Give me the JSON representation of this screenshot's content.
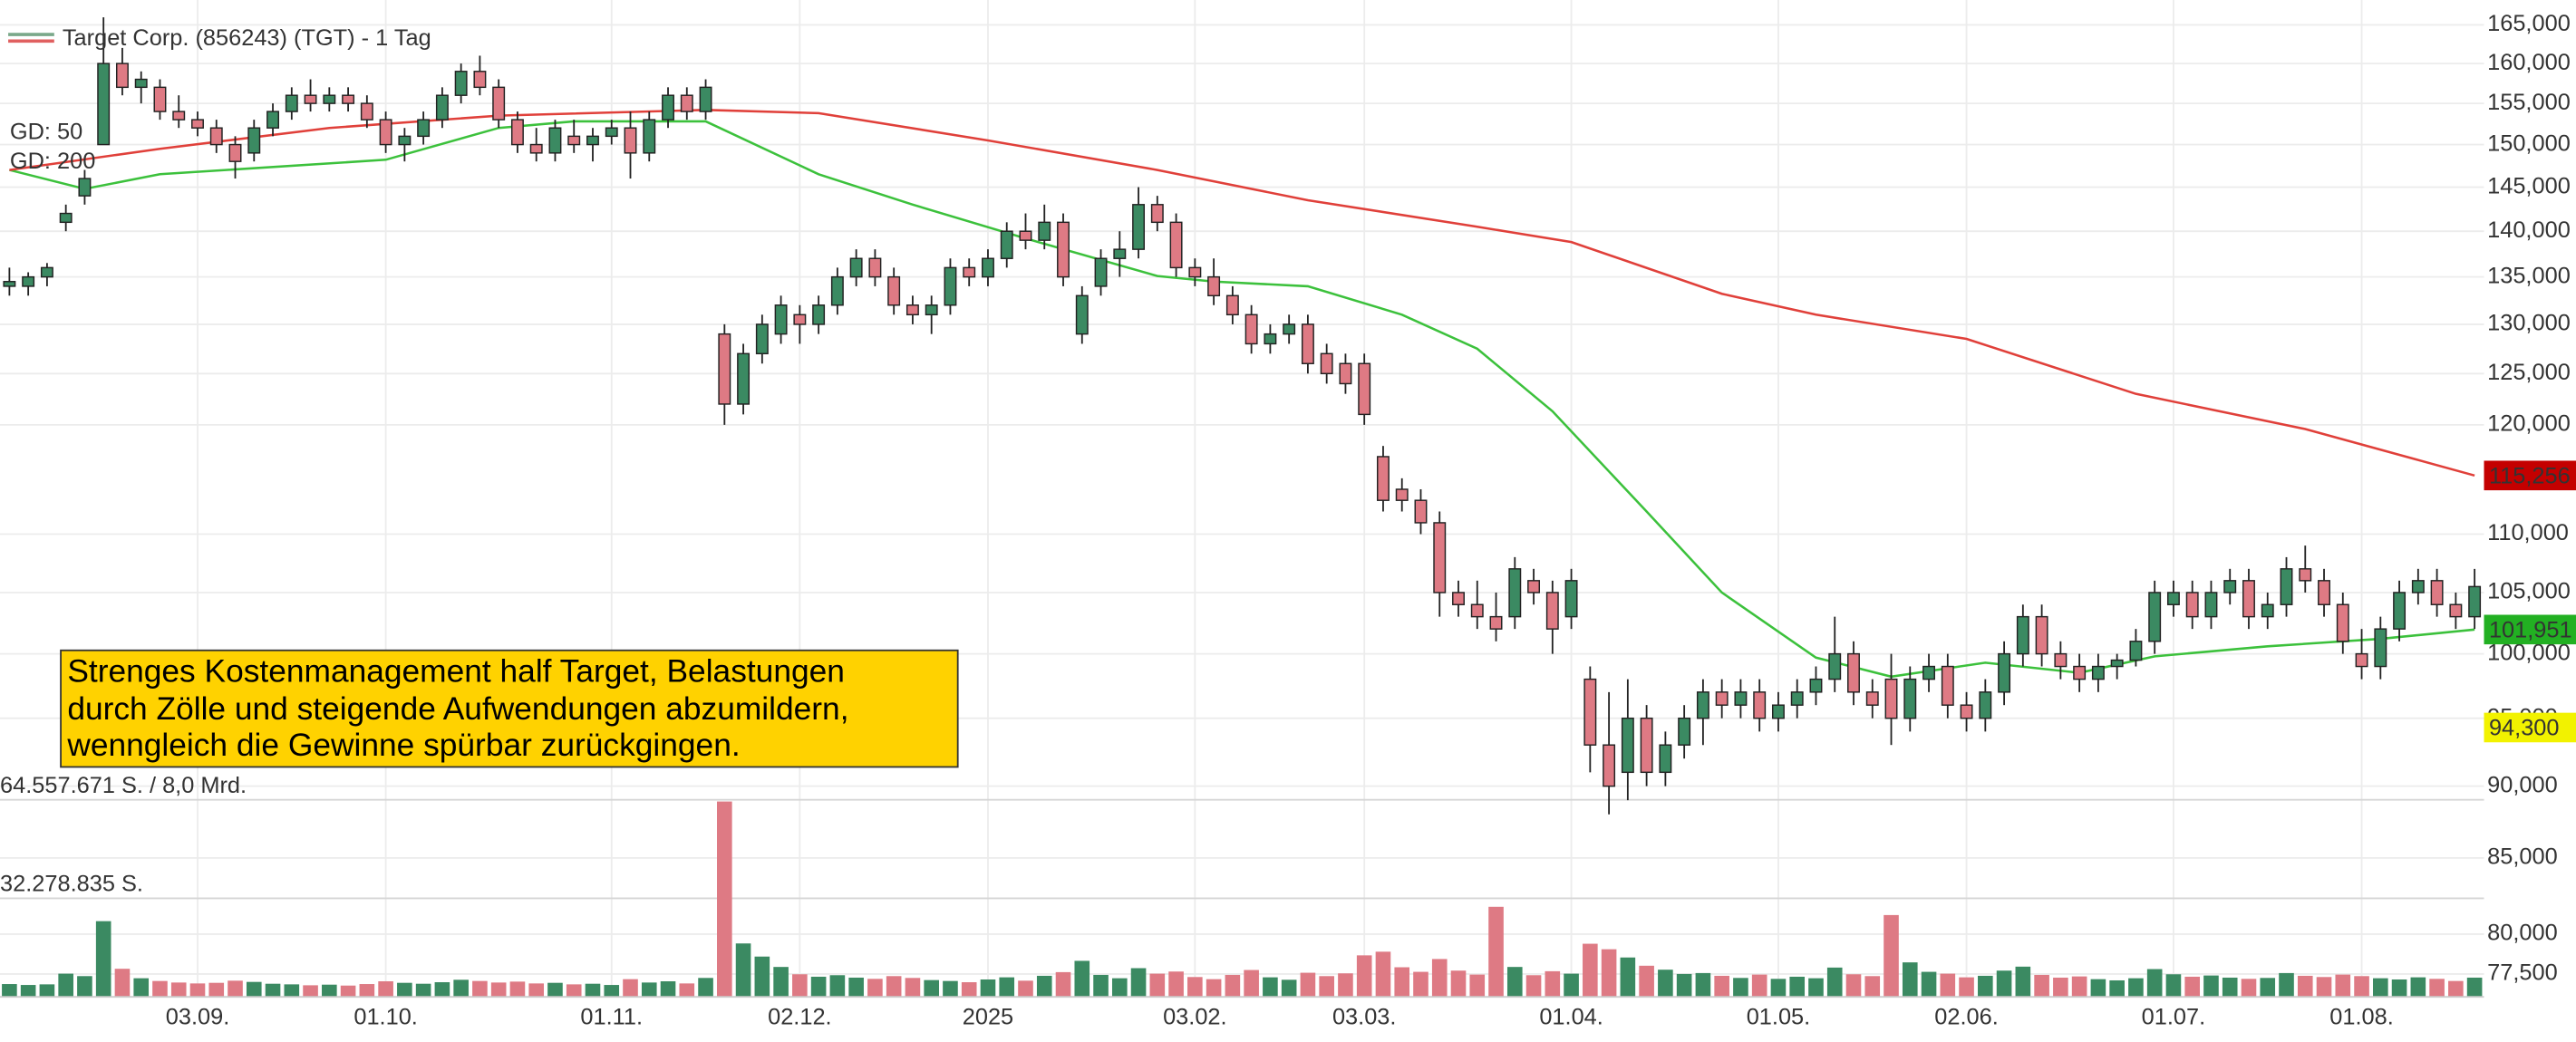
{
  "chart_data": {
    "type": "candlestick",
    "title": "Target Corp. (856243) (TGT) - 1 Tag",
    "xlim": [
      -0.5,
      131.5
    ],
    "xticks": [
      {
        "value": 10,
        "label": "03.09."
      },
      {
        "value": 20,
        "label": "01.10."
      },
      {
        "value": 32,
        "label": "01.11."
      },
      {
        "value": 42,
        "label": "02.12."
      },
      {
        "value": 52,
        "label": "2025"
      },
      {
        "value": 63,
        "label": "03.02."
      },
      {
        "value": 72,
        "label": "03.03."
      },
      {
        "value": 83,
        "label": "01.04."
      },
      {
        "value": 94,
        "label": "01.05."
      },
      {
        "value": 104,
        "label": "02.06."
      },
      {
        "value": 115,
        "label": "01.07."
      },
      {
        "value": 125,
        "label": "01.08."
      }
    ],
    "ylim": [
      76.1,
      168.3
    ],
    "log_scale": true,
    "yticks": [
      {
        "value": 77.5,
        "label": "77,500"
      },
      {
        "value": 80,
        "label": "80,000"
      },
      {
        "value": 85,
        "label": "85,000"
      },
      {
        "value": 90,
        "label": "90,000"
      },
      {
        "value": 95,
        "label": "95,000"
      },
      {
        "value": 100,
        "label": "100,000"
      },
      {
        "value": 105,
        "label": "105,000"
      },
      {
        "value": 110,
        "label": "110,000"
      },
      {
        "value": 120,
        "label": "120,000"
      },
      {
        "value": 125,
        "label": "125,000"
      },
      {
        "value": 130,
        "label": "130,000"
      },
      {
        "value": 135,
        "label": "135,000"
      },
      {
        "value": 140,
        "label": "140,000"
      },
      {
        "value": 145,
        "label": "145,000"
      },
      {
        "value": 150,
        "label": "150,000"
      },
      {
        "value": 155,
        "label": "155,000"
      },
      {
        "value": 160,
        "label": "160,000"
      },
      {
        "value": 165,
        "label": "165,000"
      }
    ],
    "grid": true,
    "up_color": "#3b8a62",
    "down_color": "#de7a84",
    "open": [
      134,
      134,
      135,
      141,
      144,
      150,
      160,
      157,
      157,
      154,
      153,
      152,
      150,
      149,
      152,
      154,
      156,
      155,
      156,
      155,
      153,
      150,
      151,
      153,
      156,
      159,
      157,
      153,
      150,
      149,
      151,
      150,
      151,
      152,
      149,
      153,
      156,
      154,
      129,
      122,
      127,
      129,
      131,
      130,
      132,
      135,
      137,
      135,
      132,
      131,
      132,
      136,
      135,
      137,
      140,
      139,
      141,
      129,
      134,
      137,
      138,
      143,
      141,
      136,
      135,
      133,
      131,
      128,
      129,
      130,
      127,
      126,
      126,
      117,
      114,
      113,
      111,
      105,
      104,
      103,
      103,
      106,
      105,
      103,
      98,
      93,
      91,
      95,
      91,
      93,
      95,
      97,
      96,
      97,
      95,
      96,
      97,
      98,
      100,
      97,
      98,
      95,
      98,
      99,
      96,
      95,
      97,
      100,
      103,
      100,
      99,
      98,
      99,
      99.5,
      101,
      104,
      105,
      103,
      105,
      106,
      103,
      104,
      107,
      106,
      104,
      100,
      99,
      102,
      105,
      106,
      104,
      103
    ],
    "high": [
      136,
      135.5,
      136.5,
      143,
      147,
      166,
      162,
      159,
      158,
      156,
      154,
      153,
      151,
      153,
      155,
      157,
      158,
      157,
      157,
      156,
      154,
      152,
      154,
      157,
      160,
      161,
      158,
      154,
      152,
      153,
      153,
      152,
      153,
      154,
      154,
      157,
      157,
      158,
      130,
      128,
      131,
      133,
      132,
      133,
      136,
      138,
      138,
      136,
      133,
      133,
      137,
      137,
      138,
      141,
      142,
      143,
      142,
      134,
      138,
      140,
      145,
      144,
      142,
      137,
      137,
      134,
      132,
      130,
      131,
      131,
      128,
      127,
      127,
      118,
      115,
      114,
      112,
      106,
      106,
      105,
      108,
      107,
      106,
      107,
      99,
      97,
      98,
      96,
      94,
      96,
      98,
      98,
      98,
      98,
      97,
      98,
      99,
      103,
      101,
      98,
      100,
      99,
      100,
      100,
      97,
      98,
      101,
      104,
      104,
      101,
      100,
      100,
      100,
      102,
      106,
      106,
      106,
      106,
      107,
      107,
      105,
      108,
      109,
      107,
      105,
      102,
      103,
      106,
      107,
      107,
      105,
      107
    ],
    "low": [
      133,
      133,
      134,
      140,
      143,
      150,
      156,
      155,
      153,
      152,
      151,
      149,
      146,
      148,
      151,
      153,
      154,
      154,
      154,
      152,
      149,
      148,
      150,
      152,
      155,
      156,
      152,
      149,
      148,
      148,
      149,
      148,
      150,
      146,
      148,
      152,
      153,
      153,
      120,
      121,
      126,
      128,
      128,
      129,
      131,
      134,
      134,
      131,
      130,
      129,
      131,
      134,
      134,
      136,
      138,
      138,
      134,
      128,
      133,
      135,
      137,
      140,
      135,
      134,
      132,
      130,
      127,
      127,
      128,
      125,
      124,
      123,
      120,
      112,
      112,
      110,
      103,
      103,
      102,
      101,
      102,
      104,
      100,
      102,
      91,
      88,
      89,
      90,
      90,
      92,
      93,
      95,
      95,
      94,
      94,
      95,
      96,
      97,
      96,
      95,
      93,
      94,
      97,
      95,
      94,
      94,
      96,
      99,
      99,
      98,
      97,
      97,
      98,
      99,
      100,
      103,
      102,
      102,
      104,
      102,
      102,
      103,
      105,
      103,
      100,
      98,
      98,
      101,
      104,
      103,
      102,
      102
    ],
    "close": [
      134.5,
      135,
      136,
      142,
      146,
      160,
      157,
      158,
      154,
      153,
      152,
      150,
      148,
      152,
      154,
      156,
      155,
      156,
      155,
      153,
      150,
      151,
      153,
      156,
      159,
      157,
      153,
      150,
      149,
      152,
      150,
      151,
      152,
      149,
      153,
      156,
      154,
      157,
      122,
      127,
      130,
      132,
      130,
      132,
      135,
      137,
      135,
      132,
      131,
      132,
      136,
      135,
      137,
      140,
      139,
      141,
      135,
      133,
      137,
      138,
      143,
      141,
      136,
      135,
      133,
      131,
      128,
      129,
      130,
      126,
      125,
      124,
      121,
      113,
      113,
      111,
      105,
      104,
      103,
      102,
      107,
      105,
      102,
      106,
      93,
      90,
      95,
      91,
      93,
      95,
      97,
      96,
      97,
      95,
      96,
      97,
      98,
      100,
      97,
      96,
      95,
      98,
      99,
      96,
      95,
      97,
      100,
      103,
      100,
      99,
      98,
      99,
      99.5,
      101,
      105,
      105,
      103,
      105,
      106,
      103,
      104,
      107,
      106,
      104,
      101,
      99,
      102,
      105,
      106,
      104,
      103,
      105.5
    ],
    "volume": [
      4200000,
      3900000,
      4100000,
      7600000,
      6800000,
      24800000,
      9200000,
      6100000,
      5200000,
      4700000,
      4400000,
      4600000,
      5300000,
      4900000,
      4300000,
      4100000,
      3800000,
      4000000,
      3700000,
      4200000,
      5100000,
      4600000,
      4300000,
      4800000,
      5600000,
      5200000,
      4700000,
      5000000,
      4400000,
      4600000,
      4100000,
      4300000,
      3900000,
      5800000,
      4700000,
      5100000,
      4400000,
      6200000,
      64000000,
      17500000,
      13200000,
      9800000,
      7400000,
      6600000,
      7100000,
      6300000,
      5900000,
      6800000,
      6200000,
      5500000,
      5200000,
      4800000,
      5700000,
      6400000,
      5300000,
      6900000,
      8100000,
      11800000,
      7200000,
      6100000,
      9400000,
      7600000,
      8300000,
      6500000,
      5800000,
      7200000,
      8800000,
      6400000,
      5600000,
      7900000,
      6800000,
      7700000,
      13600000,
      14800000,
      9700000,
      8200000,
      12400000,
      8600000,
      7300000,
      29500000,
      9800000,
      7100000,
      8400000,
      7600000,
      17400000,
      15600000,
      12900000,
      10200000,
      8900000,
      7500000,
      7800000,
      6900000,
      6200000,
      7300000,
      5900000,
      6600000,
      6100000,
      9600000,
      7400000,
      6800000,
      26800000,
      11300000,
      8200000,
      7600000,
      6400000,
      6900000,
      8600000,
      9900000,
      7200000,
      6300000,
      6700000,
      5800000,
      5400000,
      6100000,
      9100000,
      7400000,
      6600000,
      7000000,
      6300000,
      5900000,
      6200000,
      7800000,
      6900000,
      6500000,
      7300000,
      6800000,
      6100000,
      5700000,
      6400000,
      5900000,
      5200000,
      6300000
    ],
    "volume_lim": [
      0,
      64557671
    ],
    "volume_ticks": [
      {
        "value": 64557671,
        "label": "64.557.671 S. / 8,0 Mrd."
      },
      {
        "value": 32278835,
        "label": "32.278.835 S."
      }
    ],
    "moving_averages": [
      {
        "name": "GD: 50",
        "color": "#3cc13c",
        "x": [
          0,
          4,
          8,
          20,
          26,
          30,
          37,
          43,
          48,
          54,
          61,
          64,
          69,
          74,
          78,
          82,
          87,
          91,
          96,
          100,
          105,
          110,
          114,
          120,
          126,
          131
        ],
        "values": [
          147,
          144.8,
          146.5,
          148.2,
          152,
          152.8,
          152.8,
          146.5,
          143,
          139.2,
          135.1,
          134.5,
          134,
          131,
          127.5,
          121.3,
          112,
          105,
          99.7,
          98.2,
          99.3,
          98.5,
          99.8,
          100.6,
          101.2,
          101.951
        ]
      },
      {
        "name": "GD: 200",
        "color": "#e0403a",
        "x": [
          0,
          8,
          17,
          26,
          37,
          43,
          52,
          61,
          69,
          78,
          83,
          91,
          96,
          104,
          113,
          122,
          131
        ],
        "values": [
          147,
          149.5,
          152,
          153.5,
          154.2,
          153.8,
          150.5,
          147,
          143.5,
          140.5,
          138.8,
          133.2,
          131,
          128.5,
          123,
          119.6,
          115.256
        ]
      }
    ],
    "price_tags": [
      {
        "value": 115.256,
        "label": "115,256",
        "color": "#c40000",
        "text_color": "#ffffff"
      },
      {
        "value": 101.951,
        "label": "101,951",
        "color": "#22b022",
        "text_color": "#000000"
      },
      {
        "value": 94.3,
        "label": "94,300",
        "color": "#f2f200",
        "text_color": "#000000"
      }
    ],
    "annotation": [
      "Strenges Kostenmanagement half Target, Belastungen",
      "durch Zölle und steigende Aufwendungen abzumildern,",
      "wenngleich die Gewinne spürbar zurückgingen."
    ]
  }
}
